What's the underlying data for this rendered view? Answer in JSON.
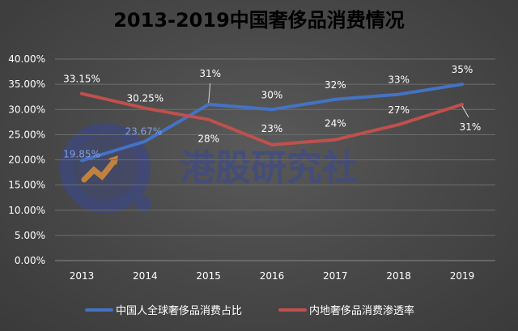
{
  "chart_data": {
    "type": "line",
    "title": "2013-2019中国奢侈品消费情况",
    "categories": [
      "2013",
      "2014",
      "2015",
      "2016",
      "2017",
      "2018",
      "2019"
    ],
    "y_ticks": [
      "0.00%",
      "5.00%",
      "10.00%",
      "15.00%",
      "20.00%",
      "25.00%",
      "30.00%",
      "35.00%",
      "40.00%"
    ],
    "ylim": [
      0,
      40
    ],
    "grid": true,
    "legend_position": "bottom",
    "series": [
      {
        "name": "中国人全球奢侈品消费占比",
        "color": "#4472c4",
        "values": [
          19.85,
          23.67,
          31,
          30,
          32,
          33,
          35
        ],
        "labels": [
          "19.85%",
          "23.67%",
          "31%",
          "30%",
          "32%",
          "33%",
          "35%"
        ]
      },
      {
        "name": "内地奢侈品消费渗透率",
        "color": "#c0504d",
        "values": [
          33.15,
          30.25,
          28,
          23,
          24,
          27,
          31
        ],
        "labels": [
          "33.15%",
          "30.25%",
          "28%",
          "23%",
          "24%",
          "27%",
          "31%"
        ]
      }
    ]
  },
  "watermark": {
    "text": "港股研究社",
    "icon": "bar-chart-arrow-logo"
  }
}
